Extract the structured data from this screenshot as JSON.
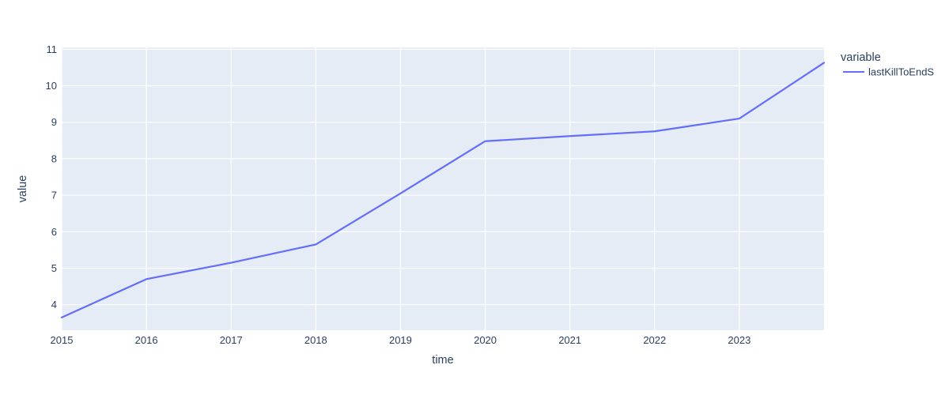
{
  "chart": {
    "colors": {
      "page_background": "#ffffff",
      "plot_background": "#e5ecf6",
      "grid": "#ffffff",
      "text": "#2a3f5f",
      "line": "#636efa"
    }
  },
  "chart_data": {
    "type": "line",
    "title": "",
    "xlabel": "time",
    "ylabel": "value",
    "x": [
      2015,
      2016,
      2017,
      2018,
      2019,
      2020,
      2021,
      2022,
      2023,
      2024
    ],
    "series": [
      {
        "name": "lastKillToEndS",
        "color": "#636efa",
        "values": [
          3.65,
          4.7,
          5.15,
          5.65,
          7.05,
          8.48,
          8.62,
          8.75,
          9.1,
          10.63
        ]
      }
    ],
    "xticks": [
      2015,
      2016,
      2017,
      2018,
      2019,
      2020,
      2021,
      2022,
      2023
    ],
    "yticks": [
      4,
      5,
      6,
      7,
      8,
      9,
      10,
      11
    ],
    "xlim": [
      2015,
      2024
    ],
    "ylim": [
      3.3,
      11.05
    ],
    "grid": true,
    "legend_title": "variable",
    "legend_position": "right"
  }
}
